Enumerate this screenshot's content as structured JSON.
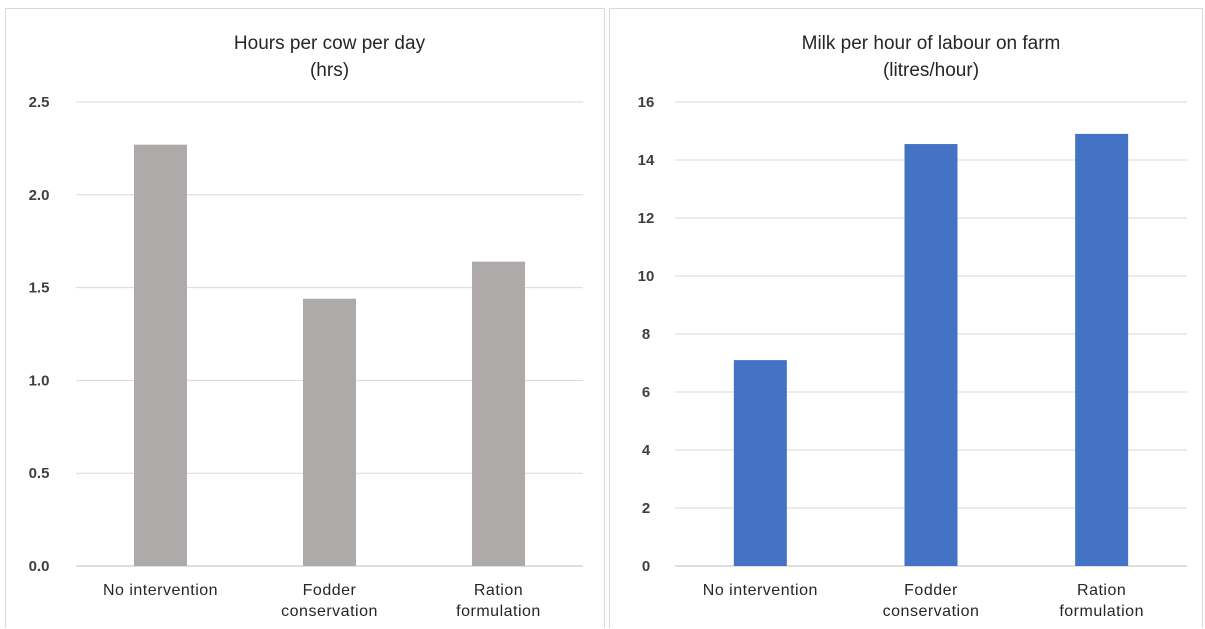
{
  "chart_data": [
    {
      "type": "bar",
      "title": "Hours per cow per day",
      "subtitle": "(hrs)",
      "categories": [
        "No intervention",
        "Fodder conservation",
        "Ration formulation"
      ],
      "category_lines": [
        [
          "No intervention"
        ],
        [
          "Fodder",
          "conservation"
        ],
        [
          "Ration",
          "formulation"
        ]
      ],
      "values": [
        2.27,
        1.44,
        1.64
      ],
      "ylim": [
        0,
        2.5
      ],
      "yticks": [
        "0.0",
        "0.5",
        "1.0",
        "1.5",
        "2.0",
        "2.5"
      ],
      "grid": true,
      "bar_color": "#aeaaaa"
    },
    {
      "type": "bar",
      "title": "Milk per hour of labour on farm",
      "subtitle": "(litres/hour)",
      "categories": [
        "No intervention",
        "Fodder conservation",
        "Ration formulation"
      ],
      "category_lines": [
        [
          "No intervention"
        ],
        [
          "Fodder",
          "conservation"
        ],
        [
          "Ration",
          "formulation"
        ]
      ],
      "values": [
        7.1,
        14.55,
        14.9
      ],
      "ylim": [
        0,
        16
      ],
      "yticks": [
        "0",
        "2",
        "4",
        "6",
        "8",
        "10",
        "12",
        "14",
        "16"
      ],
      "grid": true,
      "bar_color": "#4472c4"
    }
  ]
}
